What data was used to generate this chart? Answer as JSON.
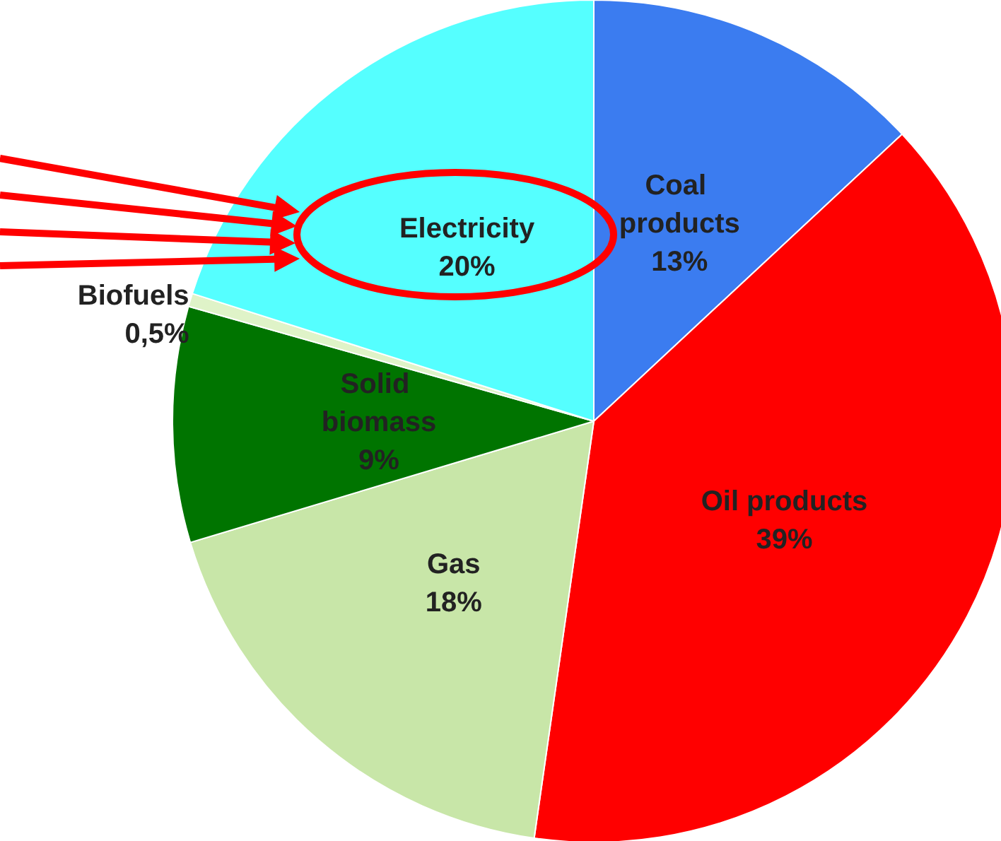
{
  "chart_data": {
    "type": "pie",
    "categories": [
      "Coal products",
      "Oil products",
      "Gas",
      "Solid biomass",
      "Biofuels",
      "Electricity"
    ],
    "values": [
      13,
      39,
      18,
      9,
      0.5,
      20
    ],
    "value_labels": [
      "13%",
      "39%",
      "18%",
      "9%",
      "0,5%",
      "20%"
    ],
    "colors": [
      "#3b7cf0",
      "#ff0000",
      "#c8e6a8",
      "#007400",
      "#dff3c8",
      "#55ffff"
    ]
  }
}
